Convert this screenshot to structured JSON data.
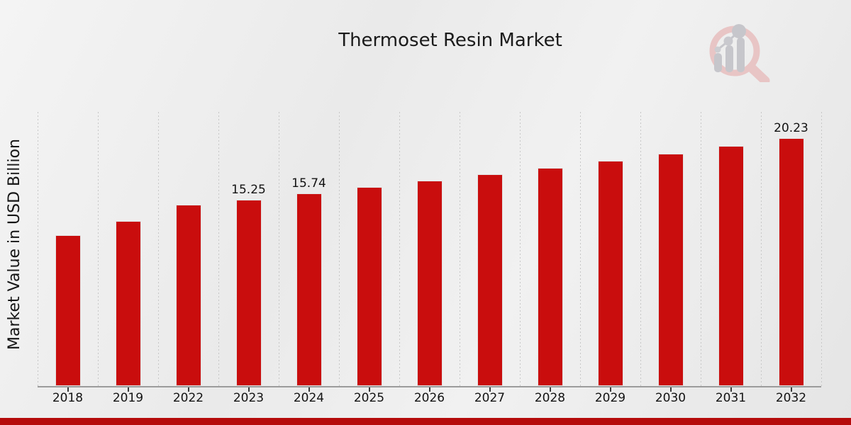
{
  "page": {
    "title": "Thermoset Resin Market",
    "watermark_icon": "magnifier-bar-chart-logo"
  },
  "chart_data": {
    "type": "bar",
    "title": "Thermoset Resin Market",
    "xlabel": "",
    "ylabel": "Market Value in USD Billion",
    "categories": [
      "2018",
      "2019",
      "2022",
      "2023",
      "2024",
      "2025",
      "2026",
      "2027",
      "2028",
      "2029",
      "2030",
      "2031",
      "2032"
    ],
    "values": [
      12.35,
      13.5,
      14.79,
      15.25,
      15.74,
      16.24,
      16.76,
      17.3,
      17.85,
      18.42,
      19.01,
      19.61,
      20.23
    ],
    "data_labels": [
      "",
      "",
      "",
      "15.25",
      "15.74",
      "",
      "",
      "",
      "",
      "",
      "",
      "",
      "20.23"
    ],
    "ylim": [
      0,
      22.4
    ],
    "grid": "vertical-dashed",
    "legend": "none",
    "bar_color": "#c90d0d",
    "bar_edge_color": "#e3e3e3",
    "accent_strip_color": "#b50b0b",
    "gridline_color": "#c7c7c7",
    "axis_color": "#9b9b9b",
    "text_color": "#131313"
  }
}
